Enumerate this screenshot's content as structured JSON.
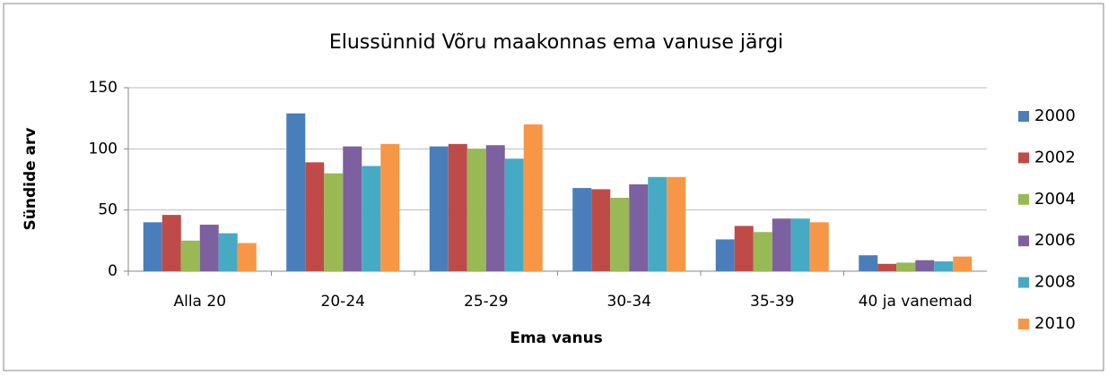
{
  "chart_data": {
    "type": "bar",
    "title": "Elussünnid Võru maakonnas  ema vanuse järgi",
    "x_label": "Ema vanus",
    "y_label": "Sündide arv",
    "categories": [
      "Alla 20",
      "20-24",
      "25-29",
      "30-34",
      "35-39",
      "40 ja vanemad"
    ],
    "series": [
      {
        "name": "2000",
        "color": "#4a7ebb",
        "values": [
          40,
          129,
          102,
          68,
          26,
          13
        ]
      },
      {
        "name": "2002",
        "color": "#be4b48",
        "values": [
          46,
          89,
          104,
          67,
          37,
          6
        ]
      },
      {
        "name": "2004",
        "color": "#98b954",
        "values": [
          25,
          80,
          100,
          60,
          32,
          7
        ]
      },
      {
        "name": "2006",
        "color": "#7d60a0",
        "values": [
          38,
          102,
          103,
          71,
          43,
          9
        ]
      },
      {
        "name": "2008",
        "color": "#46aac5",
        "values": [
          31,
          86,
          92,
          77,
          43,
          8
        ]
      },
      {
        "name": "2010",
        "color": "#f79646",
        "values": [
          23,
          104,
          120,
          77,
          40,
          12
        ]
      }
    ],
    "ylim": [
      0,
      150
    ],
    "yticks": [
      0,
      50,
      100,
      150
    ],
    "grid": true,
    "legend": "right"
  }
}
